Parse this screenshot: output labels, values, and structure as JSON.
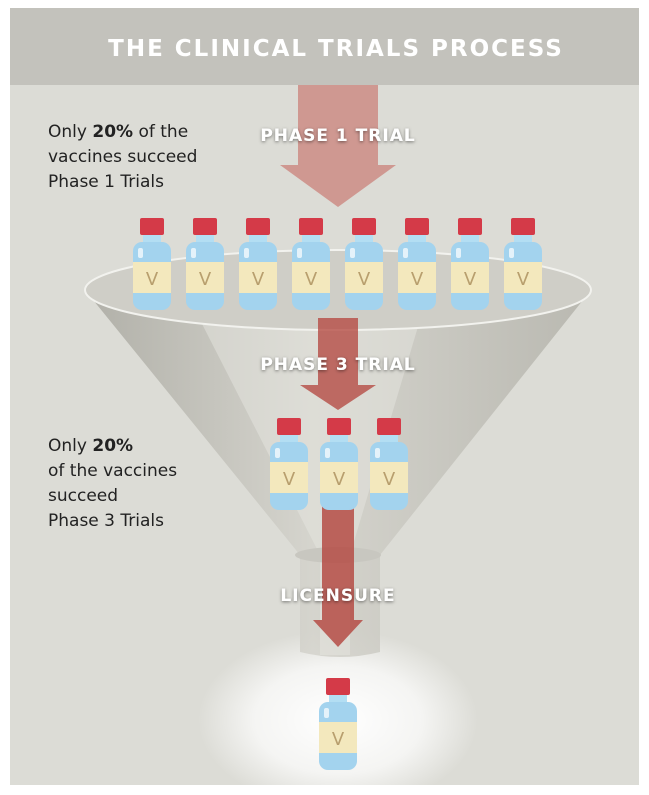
{
  "header": {
    "title": "THE CLINICAL TRIALS PROCESS"
  },
  "vial_label": "V",
  "stages": [
    {
      "label": "PHASE 1 TRIAL",
      "vial_count": 8
    },
    {
      "label": "PHASE 3 TRIAL",
      "vial_count": 3
    },
    {
      "label": "LICENSURE",
      "vial_count": 1
    }
  ],
  "notes": [
    {
      "first_line": {
        "text": "Only",
        "bold": "20%",
        "rest": "of the"
      },
      "lines": [
        "vaccines succeed",
        "Phase 1 Trials"
      ]
    },
    {
      "first_line": {
        "text": "Only",
        "bold": "20%"
      },
      "lines": [
        "of the vaccines",
        "succeed",
        "Phase 3 Trials"
      ]
    }
  ]
}
